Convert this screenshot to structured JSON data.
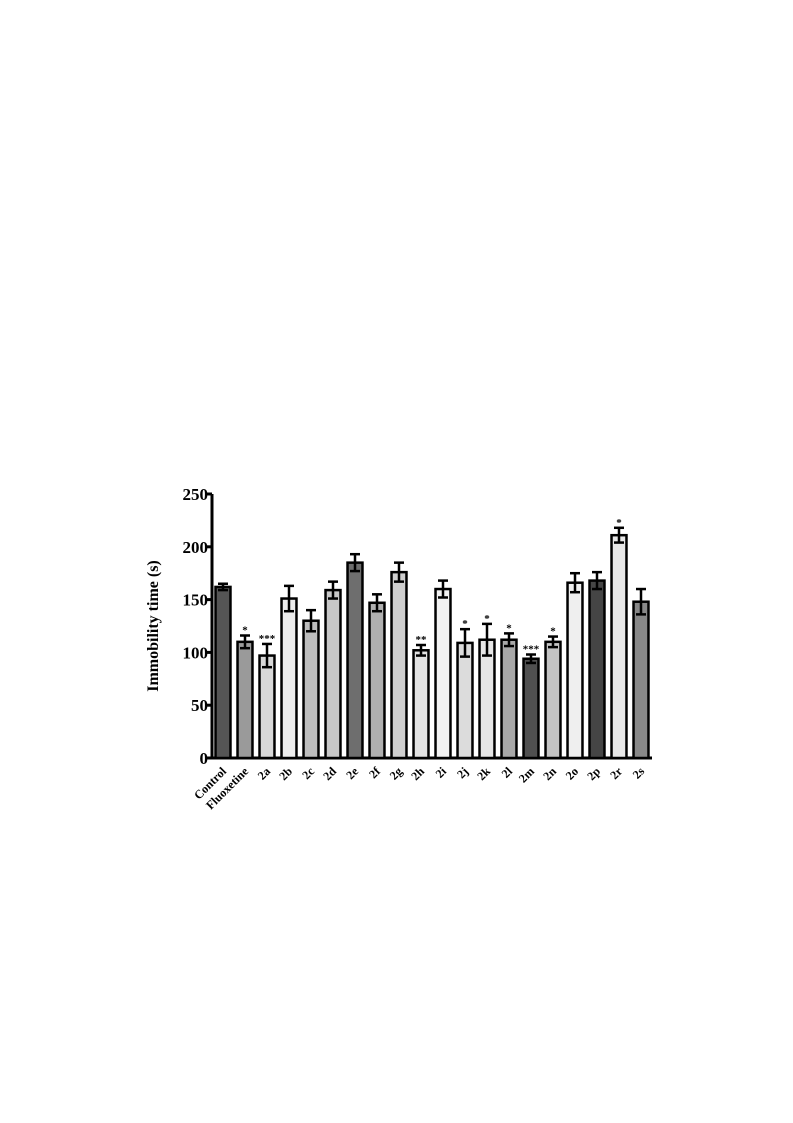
{
  "chart_data": {
    "type": "bar",
    "ylabel": "Immobility time (s)",
    "categories": [
      "Control",
      "Fluoxetine",
      "2a",
      "2b",
      "2c",
      "2d",
      "2e",
      "2f",
      "2g",
      "2h",
      "2i",
      "2j",
      "2k",
      "2l",
      "2m",
      "2n",
      "2o",
      "2p",
      "2r",
      "2s"
    ],
    "values": [
      162,
      110,
      97,
      151,
      130,
      159,
      185,
      147,
      176,
      102,
      160,
      109,
      112,
      112,
      94,
      110,
      166,
      168,
      211,
      148
    ],
    "errors": [
      3,
      6,
      11,
      12,
      10,
      8,
      8,
      8,
      9,
      5,
      8,
      13,
      15,
      6,
      4,
      5,
      9,
      8,
      7,
      12
    ],
    "annotations": [
      null,
      "*",
      "***",
      null,
      null,
      null,
      null,
      null,
      null,
      "**",
      null,
      "*",
      "*",
      "*",
      "***",
      "*",
      null,
      null,
      "*",
      null
    ],
    "colors": [
      "#555555",
      "#9a9a9a",
      "#d8d8d8",
      "#ededed",
      "#bdbdbd",
      "#c8c8c8",
      "#6e6e6e",
      "#b0b0b0",
      "#cfcfcf",
      "#e2e2e2",
      "#f2f2f2",
      "#dcdcdc",
      "#e6e6e6",
      "#a8a8a8",
      "#505050",
      "#c4c4c4",
      "#efefef",
      "#454545",
      "#e8e8e8",
      "#888888"
    ],
    "ylim": [
      0,
      250
    ],
    "yticks": [
      0,
      50,
      100,
      150,
      200,
      250
    ]
  }
}
